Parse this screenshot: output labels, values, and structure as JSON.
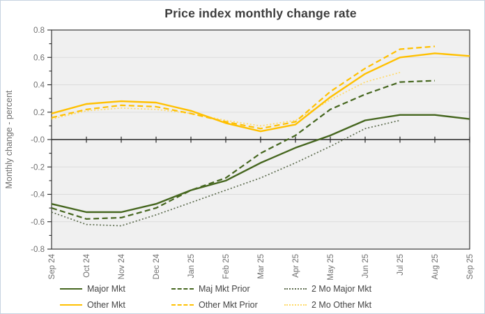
{
  "title": "Price index monthly change rate",
  "y_axis_title": "Monthly change - percent",
  "colors": {
    "major_green": "#45661e",
    "major_2mo_green": "#5c6b4e",
    "other_gold": "#ffc000",
    "other_2mo_gold": "#ffd966",
    "plot_bg": "#f0f0f0",
    "gridline": "#dcdcdc",
    "axis": "#262626",
    "tick_label": "#6f6f6f",
    "title_text": "#3d3d3d",
    "legend_text": "#444444"
  },
  "chart_data": {
    "type": "line",
    "title": "Price index monthly change rate",
    "xlabel": "",
    "ylabel": "Monthly change - percent",
    "ylim": [
      -0.8,
      0.8
    ],
    "ytick_step": 0.2,
    "grid": true,
    "legend_position": "bottom",
    "categories": [
      "Sep 24",
      "Oct 24",
      "Nov 24",
      "Dec 24",
      "Jan 25",
      "Feb 25",
      "Mar 25",
      "Apr 25",
      "May 25",
      "Jun 25",
      "Jul 25",
      "Aug 25",
      "Sep 25"
    ],
    "series": [
      {
        "name": "Major Mkt",
        "style": "solid",
        "color": "#45661e",
        "values": [
          -0.47,
          -0.53,
          -0.53,
          -0.47,
          -0.37,
          -0.3,
          -0.17,
          -0.06,
          0.03,
          0.14,
          0.18,
          0.18,
          0.15
        ]
      },
      {
        "name": "Maj Mkt Prior",
        "style": "dashed",
        "color": "#45661e",
        "values": [
          -0.5,
          -0.58,
          -0.57,
          -0.5,
          -0.37,
          -0.28,
          -0.1,
          0.03,
          0.22,
          0.33,
          0.42,
          0.43,
          null
        ]
      },
      {
        "name": "2 Mo Major Mkt",
        "style": "dotted",
        "color": "#5c6b4e",
        "values": [
          -0.53,
          -0.62,
          -0.63,
          -0.55,
          -0.46,
          -0.37,
          -0.28,
          -0.17,
          -0.05,
          0.08,
          0.14,
          null,
          null
        ]
      },
      {
        "name": "Other Mkt",
        "style": "solid",
        "color": "#ffc000",
        "values": [
          0.19,
          0.26,
          0.28,
          0.27,
          0.21,
          0.12,
          0.06,
          0.11,
          0.31,
          0.48,
          0.6,
          0.63,
          0.61
        ]
      },
      {
        "name": "Other Mkt Prior",
        "style": "dashed",
        "color": "#ffc000",
        "values": [
          0.16,
          0.22,
          0.25,
          0.24,
          0.19,
          0.13,
          0.08,
          0.13,
          0.35,
          0.52,
          0.66,
          0.68,
          null
        ]
      },
      {
        "name": "2 Mo Other Mkt",
        "style": "dotted",
        "color": "#ffd966",
        "values": [
          0.15,
          0.21,
          0.23,
          0.22,
          0.19,
          0.14,
          0.1,
          0.14,
          0.29,
          0.42,
          0.49,
          null,
          null
        ]
      }
    ]
  }
}
